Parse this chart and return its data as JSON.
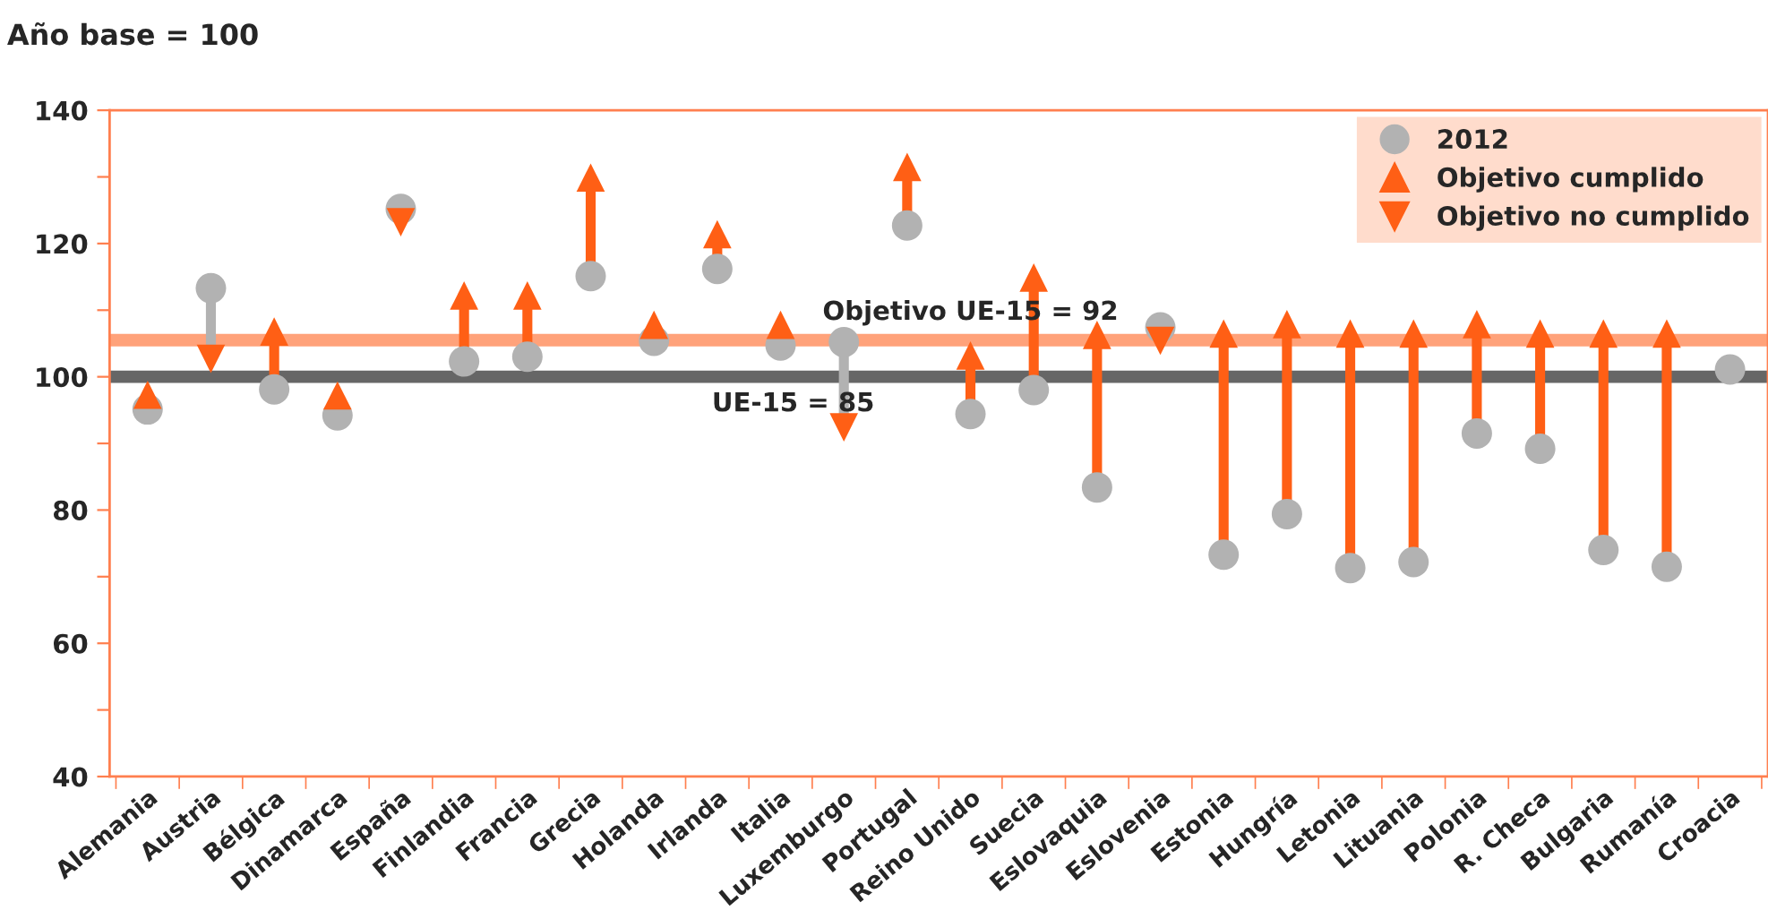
{
  "chart_data": {
    "type": "scatter",
    "title": "Año base = 100",
    "categories": [
      "Alemania",
      "Austria",
      "Bélgica",
      "Dinamarca",
      "España",
      "Finlandia",
      "Francia",
      "Grecia",
      "Holanda",
      "Irlanda",
      "Italia",
      "Luxemburgo",
      "Portugal",
      "Reino Unido",
      "Suecia",
      "Eslovaquia",
      "Eslovenia",
      "Estonia",
      "Hungría",
      "Letonia",
      "Lituania",
      "Polonia",
      "R. Checa",
      "Bulgaria",
      "Rumanía",
      "Croacia"
    ],
    "series": [
      {
        "name": "2012",
        "color": "#b2b2b2",
        "marker": "circle",
        "values": [
          95.1,
          113.3,
          98.1,
          94.2,
          125.2,
          102.3,
          103,
          115.1,
          105.4,
          116.2,
          104.7,
          105.2,
          122.7,
          94.4,
          98,
          83.4,
          107.4,
          73.3,
          79.4,
          71.3,
          72.2,
          91.5,
          89.2,
          74,
          71.5,
          101.1
        ]
      },
      {
        "name": "Objetivo cumplido",
        "color": "#ff5f15",
        "marker": "triangle",
        "values": [
          97.3,
          null,
          106.8,
          97.2,
          null,
          112.2,
          112.2,
          129.9,
          107.8,
          121.4,
          107.8,
          null,
          131.5,
          103.2,
          114.9,
          106.3,
          null,
          106.5,
          107.9,
          106.5,
          106.5,
          107.9,
          106.5,
          106.5,
          106.5,
          null
        ]
      },
      {
        "name": "Objetivo no cumplido",
        "color": "#ff5f15",
        "marker": "triangle_down",
        "values": [
          null,
          102.7,
          null,
          null,
          123.2,
          null,
          null,
          null,
          null,
          null,
          null,
          92.4,
          null,
          null,
          null,
          null,
          105.4,
          null,
          null,
          null,
          null,
          null,
          null,
          null,
          null,
          null
        ]
      }
    ],
    "ylim": [
      40,
      140
    ],
    "yticks": [
      40,
      {
        "value": 50,
        "label": null
      },
      60,
      {
        "value": 70,
        "label": null
      },
      80,
      {
        "value": 90,
        "label": null
      },
      100,
      {
        "value": 110,
        "label": null
      },
      120,
      {
        "value": 130,
        "label": null
      },
      140
    ],
    "ref_lines": [
      {
        "axis": "y",
        "value": 100,
        "color": "#666666"
      },
      {
        "axis": "y",
        "value": 105.5,
        "color": "#ffa27a"
      }
    ],
    "annotations": [
      "UE-15 = 85",
      "Objetivo UE-15 = 92"
    ],
    "grid": false,
    "legend": "top right"
  }
}
